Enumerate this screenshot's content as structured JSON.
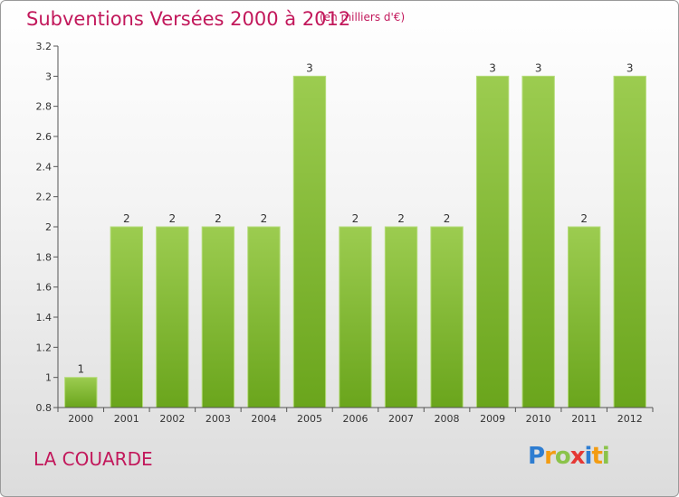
{
  "chart_data": {
    "type": "bar",
    "title": "Subventions Versées 2000 à 2012",
    "unit_note": "(en milliers d'€)",
    "categories": [
      "2000",
      "2001",
      "2002",
      "2003",
      "2004",
      "2005",
      "2006",
      "2007",
      "2008",
      "2009",
      "2010",
      "2011",
      "2012"
    ],
    "values": [
      1,
      2,
      2,
      2,
      2,
      3,
      2,
      2,
      2,
      3,
      3,
      2,
      3
    ],
    "value_labels": [
      "1",
      "2",
      "2",
      "2",
      "2",
      "3",
      "2",
      "2",
      "2",
      "3",
      "3",
      "2",
      "3"
    ],
    "yticks": [
      0.8,
      1,
      1.2,
      1.4,
      1.6,
      1.8,
      2,
      2.2,
      2.4,
      2.6,
      2.8,
      3,
      3.2
    ],
    "ytick_labels": [
      "0.8",
      "1",
      "1.2",
      "1.4",
      "1.6",
      "1.8",
      "2",
      "2.2",
      "2.4",
      "2.6",
      "2.8",
      "3",
      "3.2"
    ],
    "ylim": [
      0.8,
      3.2
    ],
    "bar_color": "#8bc34a",
    "grid": false
  },
  "commune": "LA COUARDE",
  "logo": {
    "letters": [
      "P",
      "r",
      "o",
      "x",
      "i",
      "t",
      "i"
    ],
    "colors": [
      "#2e7dd1",
      "#f39c12",
      "#8bc34a",
      "#e53935",
      "#2e7dd1",
      "#f39c12",
      "#8bc34a"
    ]
  },
  "colors": {
    "accent": "#c2185b"
  }
}
